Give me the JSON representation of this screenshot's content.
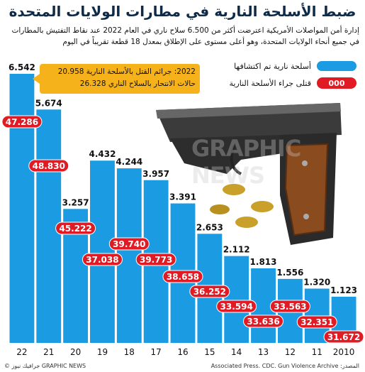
{
  "title": "ضبط الأسلحة النارية في مطارات الولايات المتحدة",
  "subtitle_line1": "إدارة أمن المواصلات الأمريكية اعترضت أكثر من 6.500 سلاح ناري في العام 2022 عند نقاط التفتيش بالمطارات",
  "subtitle_line2": "في جميع أنحاء الولايات المتحدة، وهو أعلى مستوى على الإطلاق بمعدل 18 قطعة تقريباً في اليوم",
  "legend": {
    "blue_label": "أسلحة نارية تم اكتشافها",
    "red_label": "قتلى جراء الأسلحة النارية",
    "red_sample": "000"
  },
  "callout": {
    "line1": "2022: جرائم القتل بالأسلحة النارية 20.958",
    "line2": "حالات الانتحار بالسلاح الناري 26.328"
  },
  "source": "المصدر: Associated Press. CDC. Gun Violence Archive",
  "credit": "© جرافيك نيوز GRAPHIC NEWS",
  "watermark": "GRAPHIC NEWS",
  "colors": {
    "blue": "#1a9be2",
    "red": "#e01b24",
    "callout": "#f6b21b",
    "title": "#0e2a47"
  },
  "chart_data": {
    "type": "bar",
    "categories": [
      "22",
      "21",
      "20",
      "19",
      "18",
      "17",
      "16",
      "15",
      "14",
      "13",
      "12",
      "11",
      "2010"
    ],
    "series": [
      {
        "name": "أسلحة نارية تم اكتشافها",
        "values": [
          "6.542",
          "5.674",
          "3.257",
          "4.432",
          "4.244",
          "3.957",
          "3.391",
          "2.653",
          "2.112",
          "1.813",
          "1.556",
          "1.320",
          "1.123"
        ]
      },
      {
        "name": "قتلى جراء الأسلحة النارية",
        "values": [
          "47.286",
          "48.830",
          "45.222",
          "37.038",
          "39.740",
          "39.773",
          "38.658",
          "36.252",
          "33.594",
          "33.636",
          "33.563",
          "32.351",
          "31.672"
        ]
      }
    ],
    "ylim": [
      0,
      6.542
    ]
  }
}
